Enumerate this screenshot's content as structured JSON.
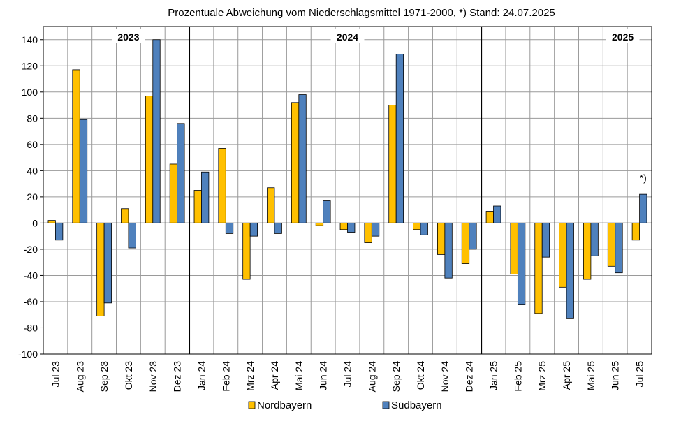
{
  "chart_data": {
    "type": "bar",
    "title": "Prozentuale Abweichung vom Niederschlagsmittel 1971-2000,  *) Stand: 24.07.2025",
    "xlabel": "",
    "ylabel": "",
    "ylim": [
      -100,
      150
    ],
    "yticks": [
      -100,
      -80,
      -60,
      -40,
      -20,
      0,
      20,
      40,
      60,
      80,
      100,
      120,
      140
    ],
    "grid": true,
    "legend_position": "bottom",
    "categories": [
      "Jul 23",
      "Aug 23",
      "Sep 23",
      "Okt 23",
      "Nov 23",
      "Dez 23",
      "Jan 24",
      "Feb 24",
      "Mrz 24",
      "Apr 24",
      "Mai 24",
      "Jun 24",
      "Jul 24",
      "Aug 24",
      "Sep 24",
      "Okt 24",
      "Nov 24",
      "Dez 24",
      "Jan 25",
      "Feb 25",
      "Mrz 25",
      "Apr 25",
      "Mai 25",
      "Jun 25",
      "Jul 25"
    ],
    "series": [
      {
        "name": "Nordbayern",
        "color": "#FFC000",
        "values": [
          2,
          117,
          -71,
          11,
          97,
          45,
          25,
          57,
          -43,
          27,
          92,
          -2,
          -5,
          -15,
          90,
          -5,
          -24,
          -31,
          9,
          -39,
          -69,
          -49,
          -43,
          -33,
          -13
        ]
      },
      {
        "name": "Südbayern",
        "color": "#4F81BD",
        "values": [
          -13,
          79,
          -61,
          -19,
          140,
          76,
          39,
          -8,
          -10,
          -8,
          98,
          17,
          -7,
          -10,
          129,
          -9,
          -42,
          -20,
          13,
          -62,
          -26,
          -73,
          -25,
          -38,
          22
        ]
      }
    ],
    "year_labels": [
      {
        "text": "2023",
        "category_index": 3.5
      },
      {
        "text": "2024",
        "category_index": 12.5
      },
      {
        "text": "2025",
        "category_index": 24
      }
    ],
    "year_separators_after_index": [
      5,
      17
    ],
    "annotations": [
      {
        "text": "*)",
        "category_index": 24
      }
    ]
  }
}
